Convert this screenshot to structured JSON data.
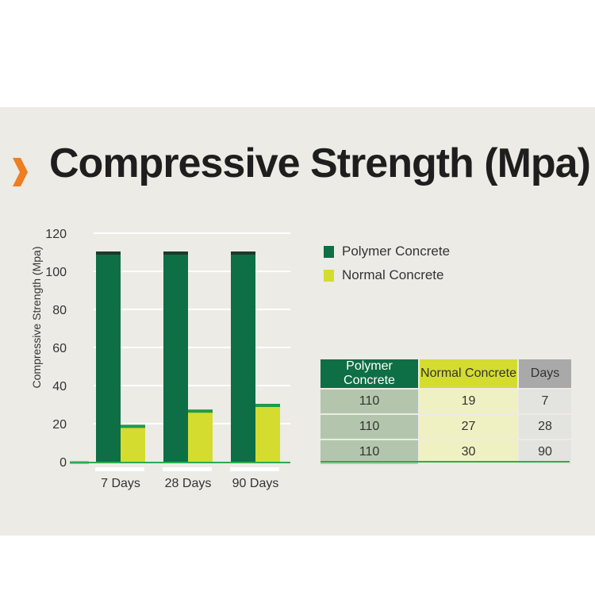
{
  "title": "Compressive Strength (Mpa)",
  "colors": {
    "polymer": "#0e6e45",
    "polymer_cap": "#1c3a2a",
    "normal": "#d4dc2f",
    "normal_cap": "#1f9a4a",
    "axis": "#2eaa55",
    "accent": "#ef7d22",
    "grid": "#ffffff"
  },
  "legend": [
    {
      "label": "Polymer Concrete"
    },
    {
      "label": "Normal Concrete"
    }
  ],
  "table": {
    "headers": [
      "Polymer Concrete",
      "Normal Concrete",
      "Days"
    ],
    "rows": [
      [
        "110",
        "19",
        "7"
      ],
      [
        "110",
        "27",
        "28"
      ],
      [
        "110",
        "30",
        "90"
      ]
    ]
  },
  "chart_data": {
    "type": "bar",
    "title": "Compressive Strength (Mpa)",
    "ylabel": "Compressive Strength (Mpa)",
    "xlabel": "",
    "categories": [
      "7 Days",
      "28 Days",
      "90 Days"
    ],
    "series": [
      {
        "name": "Polymer Concrete",
        "values": [
          110,
          110,
          110
        ]
      },
      {
        "name": "Normal Concrete",
        "values": [
          19,
          27,
          30
        ]
      }
    ],
    "ylim": [
      0,
      120
    ],
    "yticks": [
      0,
      20,
      40,
      60,
      80,
      100,
      120
    ],
    "grid": true,
    "legend_position": "right"
  }
}
